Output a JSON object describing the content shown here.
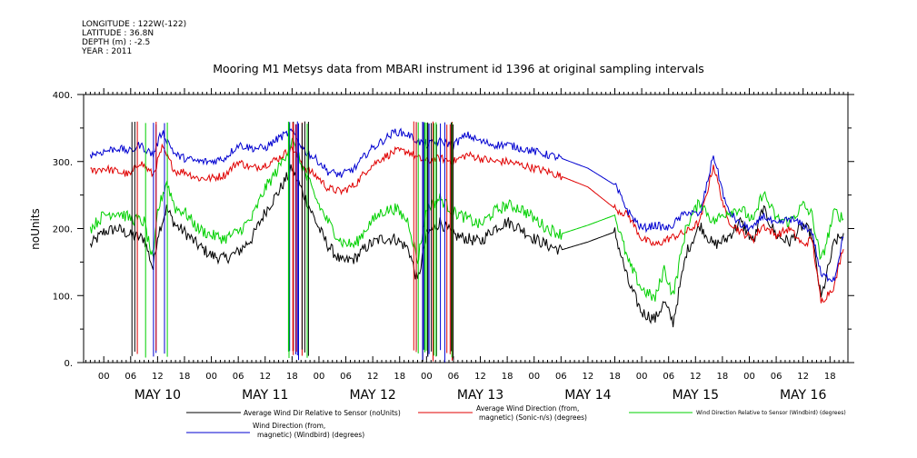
{
  "header": {
    "longitude": "LONGITUDE : 122W(-122)",
    "latitude": "LATITUDE : 36.8N",
    "depth": "DEPTH (m) : -2.5",
    "year": "YEAR : 2011"
  },
  "chart_data": {
    "type": "line",
    "title": "Mooring M1 Metsys data from MBARI instrument id 1396 at original sampling intervals",
    "ylabel": "noUnits",
    "xlabel": "",
    "ylim": [
      0,
      400
    ],
    "yticks": [
      "0.",
      "100.",
      "200.",
      "300.",
      "400."
    ],
    "xlim_hours": [
      -4.5,
      166
    ],
    "hour_ticks": [
      "00",
      "06",
      "12",
      "18"
    ],
    "days": [
      "MAY 10",
      "MAY 11",
      "MAY 12",
      "MAY 13",
      "MAY 14",
      "MAY 15",
      "MAY 16"
    ],
    "grid": false,
    "legend_position": "bottom",
    "series": [
      {
        "name": "Average Wind Dir Relative to Sensor (noUnits)",
        "color": "#000000",
        "points": [
          [
            -3,
            175
          ],
          [
            0,
            195
          ],
          [
            3,
            200
          ],
          [
            6,
            190
          ],
          [
            9,
            185
          ],
          [
            11,
            140
          ],
          [
            12,
            190
          ],
          [
            14,
            230
          ],
          [
            16,
            205
          ],
          [
            18,
            195
          ],
          [
            21,
            175
          ],
          [
            24,
            160
          ],
          [
            27,
            155
          ],
          [
            30,
            165
          ],
          [
            33,
            185
          ],
          [
            36,
            225
          ],
          [
            39,
            255
          ],
          [
            42,
            290
          ],
          [
            45,
            245
          ],
          [
            48,
            200
          ],
          [
            50,
            175
          ],
          [
            53,
            150
          ],
          [
            56,
            155
          ],
          [
            59,
            175
          ],
          [
            62,
            185
          ],
          [
            65,
            185
          ],
          [
            68,
            170
          ],
          [
            70,
            120
          ],
          [
            72,
            190
          ],
          [
            75,
            210
          ],
          [
            78,
            190
          ],
          [
            81,
            185
          ],
          [
            84,
            180
          ],
          [
            87,
            200
          ],
          [
            90,
            210
          ],
          [
            93,
            200
          ],
          [
            96,
            185
          ],
          [
            99,
            175
          ],
          [
            102,
            168
          ],
          [
            108,
            180
          ],
          [
            114,
            195
          ],
          [
            117,
            120
          ],
          [
            120,
            75
          ],
          [
            123,
            65
          ],
          [
            125,
            90
          ],
          [
            127,
            60
          ],
          [
            130,
            165
          ],
          [
            133,
            205
          ],
          [
            136,
            175
          ],
          [
            139,
            185
          ],
          [
            142,
            210
          ],
          [
            145,
            180
          ],
          [
            147,
            230
          ],
          [
            150,
            190
          ],
          [
            153,
            180
          ],
          [
            156,
            205
          ],
          [
            158,
            190
          ],
          [
            160,
            95
          ],
          [
            163,
            180
          ],
          [
            165,
            190
          ]
        ]
      },
      {
        "name": "Average Wind Direction (from, magnetic) (Sonic-n/s) (degrees)",
        "color": "#e00000",
        "points": [
          [
            -3,
            285
          ],
          [
            0,
            290
          ],
          [
            3,
            285
          ],
          [
            6,
            280
          ],
          [
            8,
            300
          ],
          [
            11,
            280
          ],
          [
            13,
            320
          ],
          [
            16,
            285
          ],
          [
            18,
            285
          ],
          [
            21,
            275
          ],
          [
            24,
            275
          ],
          [
            27,
            280
          ],
          [
            30,
            300
          ],
          [
            33,
            290
          ],
          [
            36,
            295
          ],
          [
            39,
            305
          ],
          [
            42,
            320
          ],
          [
            45,
            290
          ],
          [
            48,
            275
          ],
          [
            50,
            260
          ],
          [
            53,
            255
          ],
          [
            56,
            265
          ],
          [
            59,
            290
          ],
          [
            62,
            305
          ],
          [
            65,
            315
          ],
          [
            68,
            315
          ],
          [
            70,
            305
          ],
          [
            72,
            300
          ],
          [
            75,
            305
          ],
          [
            78,
            300
          ],
          [
            81,
            310
          ],
          [
            84,
            305
          ],
          [
            87,
            300
          ],
          [
            90,
            300
          ],
          [
            93,
            295
          ],
          [
            96,
            290
          ],
          [
            99,
            285
          ],
          [
            102,
            278
          ],
          [
            108,
            262
          ],
          [
            114,
            230
          ],
          [
            117,
            220
          ],
          [
            120,
            185
          ],
          [
            123,
            175
          ],
          [
            126,
            185
          ],
          [
            130,
            195
          ],
          [
            133,
            210
          ],
          [
            136,
            295
          ],
          [
            139,
            215
          ],
          [
            142,
            195
          ],
          [
            145,
            185
          ],
          [
            147,
            205
          ],
          [
            150,
            190
          ],
          [
            153,
            200
          ],
          [
            156,
            175
          ],
          [
            158,
            185
          ],
          [
            160,
            90
          ],
          [
            163,
            115
          ],
          [
            165,
            175
          ]
        ]
      },
      {
        "name": "Wind Direction Relative to Sensor (Windbird) (degrees)",
        "color": "#00d000",
        "points": [
          [
            -3,
            200
          ],
          [
            0,
            220
          ],
          [
            3,
            225
          ],
          [
            6,
            215
          ],
          [
            9,
            210
          ],
          [
            11,
            150
          ],
          [
            12,
            225
          ],
          [
            14,
            270
          ],
          [
            16,
            230
          ],
          [
            18,
            225
          ],
          [
            21,
            200
          ],
          [
            24,
            190
          ],
          [
            27,
            185
          ],
          [
            30,
            195
          ],
          [
            33,
            215
          ],
          [
            36,
            260
          ],
          [
            39,
            290
          ],
          [
            42,
            330
          ],
          [
            45,
            280
          ],
          [
            48,
            235
          ],
          [
            50,
            210
          ],
          [
            53,
            180
          ],
          [
            56,
            175
          ],
          [
            59,
            205
          ],
          [
            62,
            225
          ],
          [
            65,
            230
          ],
          [
            68,
            210
          ],
          [
            70,
            150
          ],
          [
            72,
            230
          ],
          [
            75,
            245
          ],
          [
            78,
            225
          ],
          [
            81,
            215
          ],
          [
            84,
            205
          ],
          [
            87,
            225
          ],
          [
            90,
            235
          ],
          [
            93,
            230
          ],
          [
            96,
            215
          ],
          [
            99,
            200
          ],
          [
            102,
            192
          ],
          [
            108,
            205
          ],
          [
            114,
            220
          ],
          [
            117,
            150
          ],
          [
            120,
            110
          ],
          [
            123,
            95
          ],
          [
            125,
            140
          ],
          [
            127,
            100
          ],
          [
            130,
            205
          ],
          [
            133,
            240
          ],
          [
            136,
            210
          ],
          [
            139,
            225
          ],
          [
            142,
            230
          ],
          [
            145,
            210
          ],
          [
            147,
            255
          ],
          [
            150,
            215
          ],
          [
            153,
            210
          ],
          [
            156,
            235
          ],
          [
            158,
            220
          ],
          [
            160,
            150
          ],
          [
            163,
            225
          ],
          [
            165,
            215
          ]
        ]
      },
      {
        "name": "Wind Direction (from, magnetic) (Windbird) (degrees)",
        "color": "#0000d0",
        "points": [
          [
            -3,
            310
          ],
          [
            0,
            315
          ],
          [
            3,
            320
          ],
          [
            6,
            315
          ],
          [
            8,
            325
          ],
          [
            11,
            310
          ],
          [
            13,
            345
          ],
          [
            16,
            310
          ],
          [
            18,
            305
          ],
          [
            21,
            300
          ],
          [
            24,
            300
          ],
          [
            27,
            305
          ],
          [
            30,
            325
          ],
          [
            33,
            320
          ],
          [
            36,
            320
          ],
          [
            39,
            335
          ],
          [
            42,
            345
          ],
          [
            45,
            315
          ],
          [
            48,
            300
          ],
          [
            50,
            285
          ],
          [
            53,
            280
          ],
          [
            56,
            290
          ],
          [
            59,
            315
          ],
          [
            62,
            330
          ],
          [
            65,
            345
          ],
          [
            68,
            340
          ],
          [
            70,
            330
          ],
          [
            72,
            325
          ],
          [
            75,
            330
          ],
          [
            78,
            325
          ],
          [
            81,
            340
          ],
          [
            84,
            330
          ],
          [
            87,
            325
          ],
          [
            90,
            325
          ],
          [
            93,
            320
          ],
          [
            96,
            315
          ],
          [
            99,
            310
          ],
          [
            102,
            305
          ],
          [
            108,
            290
          ],
          [
            114,
            265
          ],
          [
            117,
            225
          ],
          [
            120,
            200
          ],
          [
            123,
            205
          ],
          [
            126,
            200
          ],
          [
            130,
            225
          ],
          [
            133,
            220
          ],
          [
            136,
            310
          ],
          [
            139,
            230
          ],
          [
            142,
            205
          ],
          [
            145,
            200
          ],
          [
            147,
            220
          ],
          [
            150,
            205
          ],
          [
            153,
            215
          ],
          [
            156,
            205
          ],
          [
            158,
            195
          ],
          [
            160,
            130
          ],
          [
            163,
            125
          ],
          [
            165,
            190
          ]
        ]
      }
    ]
  },
  "legend": {
    "items": [
      "Average Wind Dir Relative to Sensor (noUnits)",
      "Average Wind Direction (from,",
      "magnetic) (Sonic-n/s) (degrees)",
      "Wind Direction Relative to Sensor (Windbird) (degrees)",
      "Wind Direction (from,",
      "magnetic) (Windbird) (degrees)"
    ]
  }
}
